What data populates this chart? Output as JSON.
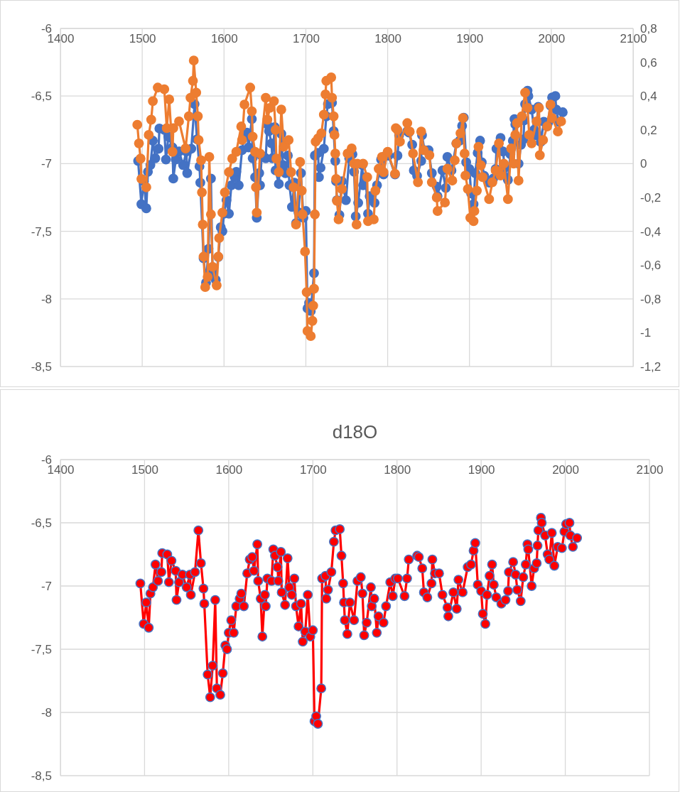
{
  "chart_data": [
    {
      "type": "line",
      "xlim": [
        1400,
        2100
      ],
      "xticks": [
        1400,
        1500,
        1600,
        1700,
        1800,
        1900,
        2000,
        2100
      ],
      "ylim": [
        -8.5,
        -6
      ],
      "yticks": [
        {
          "value": -8.5,
          "label": "-8,5"
        },
        -8,
        {
          "value": -7.5,
          "label": "-7,5"
        },
        -7,
        {
          "value": -6.5,
          "label": "-6,5"
        },
        -6
      ],
      "y2lim": [
        -1.2,
        0.8
      ],
      "y2ticks": [
        {
          "value": -1.2,
          "label": "-1,2"
        },
        {
          "value": -1,
          "label": "-1"
        },
        {
          "value": -0.8,
          "label": "-0,8"
        },
        {
          "value": -0.6,
          "label": "-0,6"
        },
        {
          "value": -0.4,
          "label": "-0,4"
        },
        {
          "value": -0.2,
          "label": "-0,2"
        },
        0,
        {
          "value": 0.2,
          "label": "0,2"
        },
        {
          "value": 0.4,
          "label": "0,4"
        },
        {
          "value": 0.6,
          "label": "0,6"
        },
        {
          "value": 0.8,
          "label": "0,8"
        }
      ],
      "grid": true,
      "marker": "circle",
      "line_style": "solid",
      "series": [
        {
          "color": "#4472c4",
          "x": [
            1495,
            1499,
            1502,
            1505,
            1507,
            1510,
            1513,
            1516,
            1520,
            1521,
            1527,
            1529,
            1532,
            1537,
            1538,
            1541,
            1545,
            1550,
            1554,
            1555,
            1560,
            1564,
            1567,
            1570,
            1571,
            1575,
            1578,
            1581,
            1584,
            1586,
            1590,
            1593,
            1596,
            1598,
            1600,
            1603,
            1606,
            1609,
            1613,
            1615,
            1618,
            1622,
            1625,
            1628,
            1630,
            1634,
            1635,
            1638,
            1640,
            1643,
            1644,
            1646,
            1651,
            1653,
            1655,
            1658,
            1659,
            1662,
            1663,
            1667,
            1670,
            1672,
            1675,
            1678,
            1680,
            1683,
            1686,
            1688,
            1691,
            1694,
            1697,
            1700,
            1702,
            1704,
            1706,
            1710,
            1711,
            1715,
            1716,
            1718,
            1722,
            1725,
            1727,
            1732,
            1734,
            1736,
            1737,
            1738,
            1741,
            1744,
            1749,
            1753,
            1757,
            1759,
            1761,
            1764,
            1769,
            1770,
            1773,
            1776,
            1778,
            1784,
            1787,
            1792,
            1795,
            1798,
            1801,
            1809,
            1812,
            1814,
            1824,
            1826,
            1830,
            1832,
            1836,
            1841,
            1842,
            1845,
            1850,
            1854,
            1860,
            1861,
            1867,
            1871,
            1873,
            1878,
            1884,
            1888,
            1891,
            1893,
            1896,
            1900,
            1902,
            1905,
            1907,
            1910,
            1913,
            1915,
            1918,
            1924,
            1929,
            1932,
            1933,
            1938,
            1941,
            1943,
            1947,
            1950,
            1953,
            1955,
            1956,
            1960,
            1963,
            1966,
            1967,
            1968,
            1971,
            1972,
            1976,
            1979,
            1981,
            1984,
            1987,
            1991,
            1996,
            1999,
            2001,
            2005,
            2006,
            2009,
            2014
          ],
          "values": [
            -6.98,
            -7.3,
            -7.13,
            -7.33,
            -7.06,
            -7.01,
            -6.83,
            -6.96,
            -6.89,
            -6.74,
            -6.75,
            -6.97,
            -6.8,
            -6.88,
            -7.11,
            -6.97,
            -6.91,
            -7.01,
            -6.91,
            -7.07,
            -6.89,
            -6.56,
            -6.82,
            -7.02,
            -7.14,
            -7.7,
            -7.88,
            -7.63,
            -7.11,
            -7.81,
            -7.86,
            -7.69,
            -7.47,
            -7.5,
            -7.37,
            -7.27,
            -7.37,
            -7.16,
            -7.1,
            -7.06,
            -7.16,
            -6.9,
            -6.79,
            -6.77,
            -6.88,
            -6.67,
            -6.96,
            -7.1,
            -7.4,
            -7.07,
            -7.16,
            -6.94,
            -6.96,
            -6.71,
            -6.76,
            -6.85,
            -6.96,
            -6.73,
            -7.05,
            -7.15,
            -6.78,
            -7.01,
            -7.07,
            -6.94,
            -7.16,
            -7.32,
            -7.14,
            -7.44,
            -7.36,
            -7.07,
            -7.4,
            -7.35,
            -8.07,
            -8.03,
            -8.09,
            -7.81,
            -6.94,
            -6.92,
            -7.1,
            -7.03,
            -6.89,
            -6.65,
            -6.56,
            -6.55,
            -6.76,
            -6.98,
            -7.13,
            -7.27,
            -7.38,
            -7.13,
            -7.27,
            -6.96,
            -6.93,
            -7.06,
            -7.39,
            -7.29,
            -7.01,
            -7.16,
            -7.1,
            -7.37,
            -7.24,
            -7.29,
            -7.16,
            -6.97,
            -7.08,
            -6.94,
            -6.94,
            -7.08,
            -6.94,
            -6.79,
            -6.76,
            -6.77,
            -6.86,
            -7.05,
            -7.09,
            -6.98,
            -6.79,
            -6.9,
            -6.9,
            -7.07,
            -7.17,
            -7.24,
            -7.05,
            -7.18,
            -6.95,
            -7.05,
            -6.85,
            -6.83,
            -6.72,
            -6.66,
            -6.99,
            -7.04,
            -7.22,
            -7.3,
            -7.07,
            -6.92,
            -6.83,
            -6.99,
            -7.09,
            -7.14,
            -7.11,
            -7.04,
            -6.89,
            -6.81,
            -6.91,
            -7.03,
            -7.12,
            -6.93,
            -6.83,
            -6.67,
            -6.71,
            -7.0,
            -6.86,
            -6.82,
            -6.68,
            -6.56,
            -6.46,
            -6.5,
            -6.6,
            -6.75,
            -6.79,
            -6.58,
            -6.84,
            -6.69,
            -6.7,
            -6.57,
            -6.51,
            -6.5,
            -6.6,
            -6.69,
            -6.62
          ]
        },
        {
          "color": "#ed7d31",
          "axis": "y2",
          "x": [
            1494,
            1496,
            1498,
            1499,
            1505,
            1508,
            1511,
            1513,
            1519,
            1527,
            1530,
            1533,
            1537,
            1538,
            1545,
            1553,
            1557,
            1559,
            1562,
            1563,
            1566,
            1568,
            1569,
            1572,
            1573,
            1574,
            1575,
            1577,
            1580,
            1582,
            1584,
            1586,
            1591,
            1593,
            1594,
            1598,
            1601,
            1606,
            1610,
            1615,
            1621,
            1622,
            1625,
            1632,
            1634,
            1635,
            1638,
            1639,
            1640,
            1644,
            1651,
            1653,
            1656,
            1661,
            1663,
            1664,
            1667,
            1670,
            1673,
            1679,
            1682,
            1685,
            1688,
            1693,
            1695,
            1696,
            1699,
            1701,
            1702,
            1706,
            1708,
            1709,
            1710,
            1711,
            1712,
            1715,
            1719,
            1722,
            1724,
            1725,
            1731,
            1732,
            1734,
            1735,
            1736,
            1737,
            1738,
            1740,
            1744,
            1751,
            1756,
            1759,
            1762,
            1763,
            1770,
            1775,
            1776,
            1783,
            1785,
            1789,
            1793,
            1795,
            1800,
            1809,
            1810,
            1812,
            1815,
            1824,
            1827,
            1831,
            1837,
            1841,
            1844,
            1851,
            1854,
            1860,
            1861,
            1870,
            1873,
            1879,
            1882,
            1884,
            1889,
            1892,
            1894,
            1895,
            1898,
            1901,
            1905,
            1906,
            1909,
            1911,
            1914,
            1916,
            1924,
            1928,
            1932,
            1936,
            1938,
            1942,
            1947,
            1951,
            1954,
            1956,
            1958,
            1960,
            1964,
            1968,
            1971,
            1973,
            1976,
            1982,
            1985,
            1986,
            1990,
            1995,
            1999,
            2001,
            2008,
            2012
          ],
          "values": [
            0.23,
            0.12,
            0.03,
            -0.09,
            -0.14,
            0.17,
            0.26,
            0.37,
            0.45,
            0.44,
            0.21,
            0.38,
            0.07,
            0.21,
            0.25,
            0.09,
            0.28,
            0.39,
            0.49,
            0.61,
            0.42,
            0.28,
            0.14,
            0.02,
            -0.17,
            -0.36,
            -0.55,
            -0.73,
            -0.67,
            0.04,
            -0.3,
            -0.61,
            -0.72,
            -0.55,
            -0.44,
            -0.29,
            -0.17,
            -0.05,
            0.03,
            0.07,
            0.22,
            0.14,
            0.35,
            0.45,
            0.31,
            0.16,
            0.07,
            -0.14,
            -0.29,
            0.06,
            0.39,
            0.26,
            0.33,
            0.37,
            0.2,
            0.03,
            -0.05,
            0.32,
            0.1,
            0.14,
            -0.05,
            -0.14,
            -0.36,
            0.01,
            -0.16,
            -0.3,
            -0.52,
            -0.76,
            -0.99,
            -1.02,
            -0.93,
            -0.84,
            -0.74,
            -0.3,
            0.13,
            0.15,
            0.18,
            0.29,
            0.41,
            0.49,
            0.51,
            0.39,
            0.28,
            0.17,
            0.06,
            -0.09,
            -0.22,
            -0.33,
            -0.15,
            0.06,
            0.09,
            0.0,
            -0.36,
            0.0,
            0.0,
            -0.08,
            -0.34,
            -0.33,
            -0.16,
            -0.03,
            0.04,
            -0.05,
            0.07,
            -0.06,
            0.21,
            0.2,
            0.13,
            0.24,
            0.19,
            0.06,
            -0.11,
            0.19,
            0.08,
            0.05,
            -0.11,
            -0.2,
            -0.28,
            -0.23,
            -0.03,
            -0.1,
            0.02,
            0.12,
            0.18,
            0.27,
            0.06,
            -0.07,
            -0.15,
            -0.32,
            -0.34,
            -0.28,
            -0.16,
            0.1,
            -0.01,
            -0.08,
            -0.21,
            -0.11,
            -0.04,
            0.12,
            -0.07,
            0.0,
            -0.21,
            0.09,
            0.0,
            0.17,
            0.24,
            -0.1,
            0.28,
            0.42,
            0.33,
            0.17,
            0.12,
            0.25,
            0.33,
            0.05,
            0.14,
            0.22,
            0.35,
            0.27,
            0.19,
            0.25
          ]
        }
      ]
    },
    {
      "type": "line",
      "title": "d18O",
      "xlim": [
        1400,
        2100
      ],
      "xticks": [
        1400,
        1500,
        1600,
        1700,
        1800,
        1900,
        2000,
        2100
      ],
      "ylim": [
        -8.5,
        -6
      ],
      "yticks": [
        {
          "value": -8.5,
          "label": "-8,5"
        },
        -8,
        {
          "value": -7.5,
          "label": "-7,5"
        },
        -7,
        {
          "value": -6.5,
          "label": "-6,5"
        },
        -6
      ],
      "grid": true,
      "marker": "circle",
      "line_style": "solid",
      "series": [
        {
          "color": "#ff0000",
          "x": [
            1495,
            1499,
            1502,
            1505,
            1507,
            1510,
            1513,
            1516,
            1520,
            1521,
            1527,
            1529,
            1532,
            1537,
            1538,
            1541,
            1545,
            1550,
            1554,
            1555,
            1560,
            1564,
            1567,
            1570,
            1571,
            1575,
            1578,
            1581,
            1584,
            1586,
            1590,
            1593,
            1596,
            1598,
            1600,
            1603,
            1606,
            1609,
            1613,
            1615,
            1618,
            1622,
            1625,
            1628,
            1630,
            1634,
            1635,
            1638,
            1640,
            1643,
            1644,
            1646,
            1651,
            1653,
            1655,
            1658,
            1659,
            1662,
            1663,
            1667,
            1670,
            1672,
            1675,
            1678,
            1680,
            1683,
            1686,
            1688,
            1691,
            1694,
            1697,
            1700,
            1702,
            1704,
            1706,
            1710,
            1711,
            1715,
            1716,
            1718,
            1722,
            1725,
            1727,
            1732,
            1734,
            1736,
            1737,
            1738,
            1741,
            1744,
            1749,
            1753,
            1757,
            1759,
            1761,
            1764,
            1769,
            1770,
            1773,
            1776,
            1778,
            1784,
            1787,
            1792,
            1795,
            1798,
            1801,
            1809,
            1812,
            1814,
            1824,
            1826,
            1830,
            1832,
            1836,
            1841,
            1842,
            1845,
            1850,
            1854,
            1860,
            1861,
            1867,
            1871,
            1873,
            1878,
            1884,
            1888,
            1891,
            1893,
            1896,
            1900,
            1902,
            1905,
            1907,
            1910,
            1913,
            1915,
            1918,
            1924,
            1929,
            1932,
            1933,
            1938,
            1941,
            1943,
            1947,
            1950,
            1953,
            1955,
            1956,
            1960,
            1963,
            1966,
            1967,
            1968,
            1971,
            1972,
            1976,
            1979,
            1981,
            1984,
            1987,
            1991,
            1996,
            1999,
            2001,
            2005,
            2006,
            2009,
            2014
          ],
          "values": [
            -6.98,
            -7.3,
            -7.13,
            -7.33,
            -7.06,
            -7.01,
            -6.83,
            -6.96,
            -6.89,
            -6.74,
            -6.75,
            -6.97,
            -6.8,
            -6.88,
            -7.11,
            -6.97,
            -6.91,
            -7.01,
            -6.91,
            -7.07,
            -6.89,
            -6.56,
            -6.82,
            -7.02,
            -7.14,
            -7.7,
            -7.88,
            -7.63,
            -7.11,
            -7.81,
            -7.86,
            -7.69,
            -7.47,
            -7.5,
            -7.37,
            -7.27,
            -7.37,
            -7.16,
            -7.1,
            -7.06,
            -7.16,
            -6.9,
            -6.79,
            -6.77,
            -6.88,
            -6.67,
            -6.96,
            -7.1,
            -7.4,
            -7.07,
            -7.16,
            -6.94,
            -6.96,
            -6.71,
            -6.76,
            -6.85,
            -6.96,
            -6.73,
            -7.05,
            -7.15,
            -6.78,
            -7.01,
            -7.07,
            -6.94,
            -7.16,
            -7.32,
            -7.14,
            -7.44,
            -7.36,
            -7.07,
            -7.4,
            -7.35,
            -8.07,
            -8.03,
            -8.09,
            -7.81,
            -6.94,
            -6.92,
            -7.1,
            -7.03,
            -6.89,
            -6.65,
            -6.56,
            -6.55,
            -6.76,
            -6.98,
            -7.13,
            -7.27,
            -7.38,
            -7.13,
            -7.27,
            -6.96,
            -6.93,
            -7.06,
            -7.39,
            -7.29,
            -7.01,
            -7.16,
            -7.1,
            -7.37,
            -7.24,
            -7.29,
            -7.16,
            -6.97,
            -7.08,
            -6.94,
            -6.94,
            -7.08,
            -6.94,
            -6.79,
            -6.76,
            -6.77,
            -6.86,
            -7.05,
            -7.09,
            -6.98,
            -6.79,
            -6.9,
            -6.9,
            -7.07,
            -7.17,
            -7.24,
            -7.05,
            -7.18,
            -6.95,
            -7.05,
            -6.85,
            -6.83,
            -6.72,
            -6.66,
            -6.99,
            -7.04,
            -7.22,
            -7.3,
            -7.07,
            -6.92,
            -6.83,
            -6.99,
            -7.09,
            -7.14,
            -7.11,
            -7.04,
            -6.89,
            -6.81,
            -6.91,
            -7.03,
            -7.12,
            -6.93,
            -6.83,
            -6.67,
            -6.71,
            -7.0,
            -6.86,
            -6.82,
            -6.68,
            -6.56,
            -6.46,
            -6.5,
            -6.6,
            -6.75,
            -6.79,
            -6.58,
            -6.84,
            -6.69,
            -6.7,
            -6.57,
            -6.51,
            -6.5,
            -6.6,
            -6.69,
            -6.62
          ]
        }
      ]
    }
  ]
}
